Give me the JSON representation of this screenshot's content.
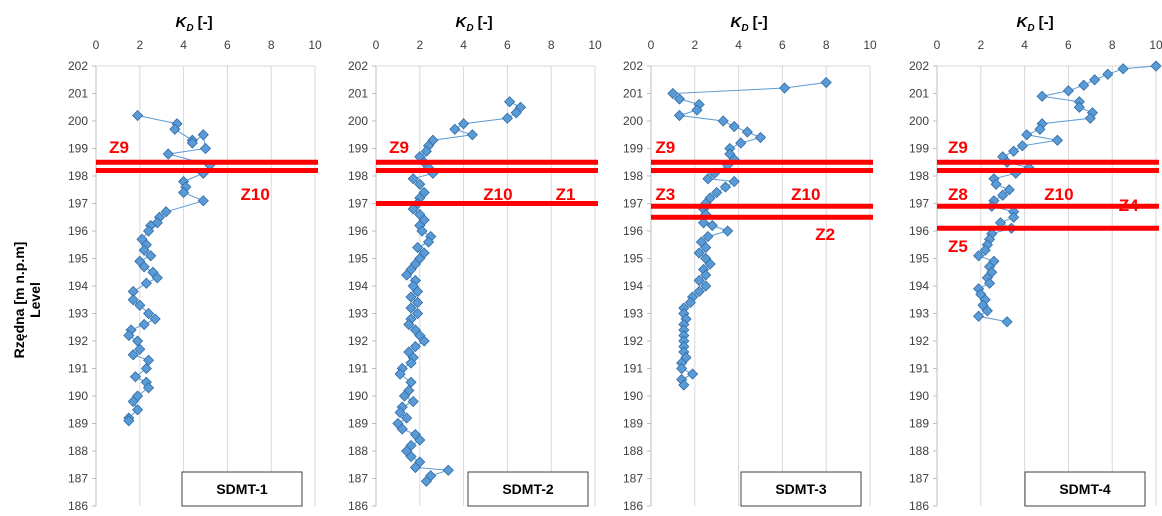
{
  "y_axis_label_line1": "Rzędna [m n.p.m]",
  "y_axis_label_line2": "Level",
  "colors": {
    "marker": "#5b9bd5",
    "marker_edge": "#2e6aa6",
    "line": "#5b9bd5",
    "zone_line": "#ff0000",
    "zone_text": "#ff0000"
  },
  "chart_data": [
    {
      "type": "scatter",
      "title": "SDMT-1",
      "xlabel_main": "K",
      "xlabel_sub": "D",
      "xlabel_unit": "[-]",
      "xlim": [
        0,
        10
      ],
      "xticks": [
        0,
        2,
        4,
        6,
        8,
        10
      ],
      "ylim": [
        186,
        202
      ],
      "yticks": [
        186,
        187,
        188,
        189,
        190,
        191,
        192,
        193,
        194,
        195,
        196,
        197,
        198,
        199,
        200,
        201,
        202
      ],
      "zone_lines": [
        198.5,
        198.2
      ],
      "zone_labels": [
        {
          "text": "Z9",
          "kd": 0.6,
          "level": 199.05
        },
        {
          "text": "Z10",
          "kd": 6.6,
          "level": 197.35
        }
      ],
      "series": [
        {
          "points": [
            [
              1.9,
              200.2
            ],
            [
              3.7,
              199.9
            ],
            [
              3.6,
              199.7
            ],
            [
              4.4,
              199.3
            ],
            [
              4.4,
              199.2
            ],
            [
              4.9,
              199.5
            ],
            [
              5.0,
              199.0
            ],
            [
              3.3,
              198.8
            ],
            [
              5.2,
              198.4
            ],
            [
              4.9,
              198.1
            ],
            [
              4.0,
              197.8
            ],
            [
              4.1,
              197.6
            ],
            [
              4.0,
              197.4
            ],
            [
              4.9,
              197.1
            ],
            [
              3.2,
              196.7
            ],
            [
              2.9,
              196.5
            ],
            [
              2.8,
              196.3
            ],
            [
              2.5,
              196.2
            ],
            [
              2.4,
              196.0
            ],
            [
              2.1,
              195.7
            ],
            [
              2.3,
              195.5
            ],
            [
              2.2,
              195.3
            ],
            [
              2.5,
              195.1
            ],
            [
              2.0,
              194.9
            ],
            [
              2.2,
              194.7
            ],
            [
              2.6,
              194.5
            ],
            [
              2.8,
              194.3
            ],
            [
              2.3,
              194.1
            ],
            [
              1.7,
              193.8
            ],
            [
              1.7,
              193.5
            ],
            [
              2.0,
              193.3
            ],
            [
              2.4,
              193.0
            ],
            [
              2.7,
              192.8
            ],
            [
              2.2,
              192.6
            ],
            [
              1.6,
              192.4
            ],
            [
              1.5,
              192.2
            ],
            [
              1.9,
              192.0
            ],
            [
              2.0,
              191.7
            ],
            [
              1.7,
              191.5
            ],
            [
              2.4,
              191.3
            ],
            [
              2.3,
              191.0
            ],
            [
              1.8,
              190.7
            ],
            [
              2.3,
              190.5
            ],
            [
              2.4,
              190.3
            ],
            [
              1.9,
              190.0
            ],
            [
              1.7,
              189.8
            ],
            [
              1.9,
              189.5
            ],
            [
              1.5,
              189.2
            ],
            [
              1.5,
              189.1
            ]
          ]
        }
      ]
    },
    {
      "type": "scatter",
      "title": "SDMT-2",
      "xlabel_main": "K",
      "xlabel_sub": "D",
      "xlabel_unit": "[-]",
      "xlim": [
        0,
        10
      ],
      "xticks": [
        0,
        2,
        4,
        6,
        8,
        10
      ],
      "ylim": [
        186,
        202
      ],
      "yticks": [
        186,
        187,
        188,
        189,
        190,
        191,
        192,
        193,
        194,
        195,
        196,
        197,
        198,
        199,
        200,
        201,
        202
      ],
      "zone_lines": [
        198.5,
        198.2,
        197.0
      ],
      "zone_labels": [
        {
          "text": "Z9",
          "kd": 0.6,
          "level": 199.05
        },
        {
          "text": "Z10",
          "kd": 4.9,
          "level": 197.35
        },
        {
          "text": "Z1",
          "kd": 8.2,
          "level": 197.35
        }
      ],
      "series": [
        {
          "points": [
            [
              6.1,
              200.7
            ],
            [
              6.6,
              200.5
            ],
            [
              6.4,
              200.3
            ],
            [
              6.0,
              200.1
            ],
            [
              4.0,
              199.9
            ],
            [
              3.6,
              199.7
            ],
            [
              4.4,
              199.5
            ],
            [
              2.6,
              199.3
            ],
            [
              2.4,
              199.1
            ],
            [
              2.3,
              198.9
            ],
            [
              2.0,
              198.7
            ],
            [
              2.2,
              198.5
            ],
            [
              2.4,
              198.3
            ],
            [
              2.6,
              198.1
            ],
            [
              1.7,
              197.9
            ],
            [
              2.0,
              197.7
            ],
            [
              2.2,
              197.4
            ],
            [
              2.0,
              197.2
            ],
            [
              1.9,
              197.0
            ],
            [
              1.7,
              196.8
            ],
            [
              2.0,
              196.6
            ],
            [
              2.2,
              196.4
            ],
            [
              2.0,
              196.2
            ],
            [
              2.1,
              196.0
            ],
            [
              2.5,
              195.8
            ],
            [
              2.4,
              195.6
            ],
            [
              1.9,
              195.4
            ],
            [
              2.2,
              195.2
            ],
            [
              2.0,
              195.0
            ],
            [
              1.8,
              194.8
            ],
            [
              1.6,
              194.6
            ],
            [
              1.4,
              194.4
            ],
            [
              1.8,
              194.2
            ],
            [
              1.7,
              194.0
            ],
            [
              1.9,
              193.8
            ],
            [
              1.6,
              193.6
            ],
            [
              1.9,
              193.4
            ],
            [
              1.6,
              193.2
            ],
            [
              1.9,
              193.0
            ],
            [
              1.6,
              192.8
            ],
            [
              1.5,
              192.6
            ],
            [
              1.8,
              192.4
            ],
            [
              2.0,
              192.2
            ],
            [
              2.2,
              192.0
            ],
            [
              1.8,
              191.8
            ],
            [
              1.5,
              191.6
            ],
            [
              1.7,
              191.4
            ],
            [
              1.6,
              191.2
            ],
            [
              1.2,
              191.0
            ],
            [
              1.1,
              190.8
            ],
            [
              1.6,
              190.5
            ],
            [
              1.5,
              190.2
            ],
            [
              1.3,
              190.0
            ],
            [
              1.7,
              189.8
            ],
            [
              1.2,
              189.6
            ],
            [
              1.1,
              189.4
            ],
            [
              1.4,
              189.2
            ],
            [
              1.0,
              189.0
            ],
            [
              1.2,
              188.8
            ],
            [
              1.8,
              188.6
            ],
            [
              2.0,
              188.4
            ],
            [
              1.6,
              188.2
            ],
            [
              1.4,
              188.0
            ],
            [
              1.6,
              187.8
            ],
            [
              2.0,
              187.6
            ],
            [
              1.8,
              187.4
            ],
            [
              3.3,
              187.3
            ],
            [
              2.5,
              187.1
            ],
            [
              2.3,
              186.9
            ]
          ]
        }
      ]
    },
    {
      "type": "scatter",
      "title": "SDMT-3",
      "xlabel_main": "K",
      "xlabel_sub": "D",
      "xlabel_unit": "[-]",
      "xlim": [
        0,
        10
      ],
      "xticks": [
        0,
        2,
        4,
        6,
        8,
        10
      ],
      "ylim": [
        186,
        202
      ],
      "yticks": [
        186,
        187,
        188,
        189,
        190,
        191,
        192,
        193,
        194,
        195,
        196,
        197,
        198,
        199,
        200,
        201,
        202
      ],
      "zone_lines": [
        198.5,
        198.2,
        196.9,
        196.5
      ],
      "zone_labels": [
        {
          "text": "Z9",
          "kd": 0.2,
          "level": 199.05
        },
        {
          "text": "Z3",
          "kd": 0.2,
          "level": 197.35
        },
        {
          "text": "Z10",
          "kd": 6.4,
          "level": 197.35
        },
        {
          "text": "Z2",
          "kd": 7.5,
          "level": 195.9
        }
      ],
      "series": [
        {
          "points": [
            [
              8.0,
              201.4
            ],
            [
              6.1,
              201.2
            ],
            [
              1.0,
              201.0
            ],
            [
              1.3,
              200.8
            ],
            [
              2.2,
              200.6
            ],
            [
              2.1,
              200.4
            ],
            [
              1.3,
              200.2
            ],
            [
              3.3,
              200.0
            ],
            [
              3.8,
              199.8
            ],
            [
              4.4,
              199.6
            ],
            [
              5.0,
              199.4
            ],
            [
              4.1,
              199.2
            ],
            [
              3.6,
              199.0
            ],
            [
              3.6,
              198.8
            ],
            [
              3.8,
              198.6
            ],
            [
              3.5,
              198.4
            ],
            [
              2.9,
              198.1
            ],
            [
              2.6,
              197.9
            ],
            [
              3.8,
              197.8
            ],
            [
              3.4,
              197.6
            ],
            [
              3.0,
              197.4
            ],
            [
              2.7,
              197.2
            ],
            [
              2.5,
              197.0
            ],
            [
              2.4,
              196.8
            ],
            [
              2.5,
              196.6
            ],
            [
              2.4,
              196.3
            ],
            [
              2.8,
              196.2
            ],
            [
              3.5,
              196.0
            ],
            [
              2.6,
              195.8
            ],
            [
              2.3,
              195.6
            ],
            [
              2.5,
              195.4
            ],
            [
              2.2,
              195.2
            ],
            [
              2.5,
              195.0
            ],
            [
              2.7,
              194.8
            ],
            [
              2.4,
              194.6
            ],
            [
              2.5,
              194.4
            ],
            [
              2.2,
              194.2
            ],
            [
              2.5,
              194.0
            ],
            [
              2.2,
              193.8
            ],
            [
              1.9,
              193.6
            ],
            [
              1.8,
              193.4
            ],
            [
              1.5,
              193.2
            ],
            [
              1.5,
              193.0
            ],
            [
              1.6,
              192.8
            ],
            [
              1.5,
              192.6
            ],
            [
              1.5,
              192.4
            ],
            [
              1.5,
              192.2
            ],
            [
              1.5,
              192.0
            ],
            [
              1.5,
              191.8
            ],
            [
              1.5,
              191.6
            ],
            [
              1.6,
              191.4
            ],
            [
              1.4,
              191.2
            ],
            [
              1.4,
              191.0
            ],
            [
              1.9,
              190.8
            ],
            [
              1.4,
              190.6
            ],
            [
              1.5,
              190.4
            ]
          ]
        }
      ]
    },
    {
      "type": "scatter",
      "title": "SDMT-4",
      "xlabel_main": "K",
      "xlabel_sub": "D",
      "xlabel_unit": "[-]",
      "xlim": [
        0,
        10
      ],
      "xticks": [
        0,
        2,
        4,
        6,
        8,
        10
      ],
      "ylim": [
        186,
        202
      ],
      "yticks": [
        186,
        187,
        188,
        189,
        190,
        191,
        192,
        193,
        194,
        195,
        196,
        197,
        198,
        199,
        200,
        201,
        202
      ],
      "zone_lines": [
        198.5,
        198.2,
        196.9,
        196.1
      ],
      "zone_labels": [
        {
          "text": "Z9",
          "kd": 0.5,
          "level": 199.05
        },
        {
          "text": "Z8",
          "kd": 0.5,
          "level": 197.35
        },
        {
          "text": "Z10",
          "kd": 4.9,
          "level": 197.35
        },
        {
          "text": "Z4",
          "kd": 8.3,
          "level": 196.95
        },
        {
          "text": "Z5",
          "kd": 0.5,
          "level": 195.45
        }
      ],
      "series": [
        {
          "points": [
            [
              10.0,
              202.0
            ],
            [
              8.5,
              201.9
            ],
            [
              7.8,
              201.7
            ],
            [
              7.2,
              201.5
            ],
            [
              6.7,
              201.3
            ],
            [
              6.0,
              201.1
            ],
            [
              4.8,
              200.9
            ],
            [
              6.5,
              200.7
            ],
            [
              6.5,
              200.5
            ],
            [
              7.1,
              200.3
            ],
            [
              7.0,
              200.1
            ],
            [
              4.8,
              199.9
            ],
            [
              4.7,
              199.7
            ],
            [
              4.1,
              199.5
            ],
            [
              5.5,
              199.3
            ],
            [
              3.9,
              199.1
            ],
            [
              3.5,
              198.9
            ],
            [
              3.0,
              198.7
            ],
            [
              3.2,
              198.5
            ],
            [
              4.2,
              198.3
            ],
            [
              3.6,
              198.1
            ],
            [
              2.6,
              197.9
            ],
            [
              2.7,
              197.7
            ],
            [
              3.3,
              197.5
            ],
            [
              3.0,
              197.3
            ],
            [
              2.6,
              197.1
            ],
            [
              2.5,
              196.9
            ],
            [
              3.5,
              196.7
            ],
            [
              3.5,
              196.5
            ],
            [
              2.9,
              196.3
            ],
            [
              3.4,
              196.1
            ],
            [
              2.5,
              195.9
            ],
            [
              2.4,
              195.7
            ],
            [
              2.3,
              195.5
            ],
            [
              2.2,
              195.3
            ],
            [
              1.9,
              195.1
            ],
            [
              2.6,
              194.9
            ],
            [
              2.4,
              194.7
            ],
            [
              2.5,
              194.5
            ],
            [
              2.3,
              194.3
            ],
            [
              2.4,
              194.1
            ],
            [
              1.9,
              193.9
            ],
            [
              2.0,
              193.7
            ],
            [
              2.2,
              193.5
            ],
            [
              2.1,
              193.3
            ],
            [
              2.3,
              193.1
            ],
            [
              1.9,
              192.9
            ],
            [
              3.2,
              192.7
            ]
          ]
        }
      ]
    }
  ]
}
